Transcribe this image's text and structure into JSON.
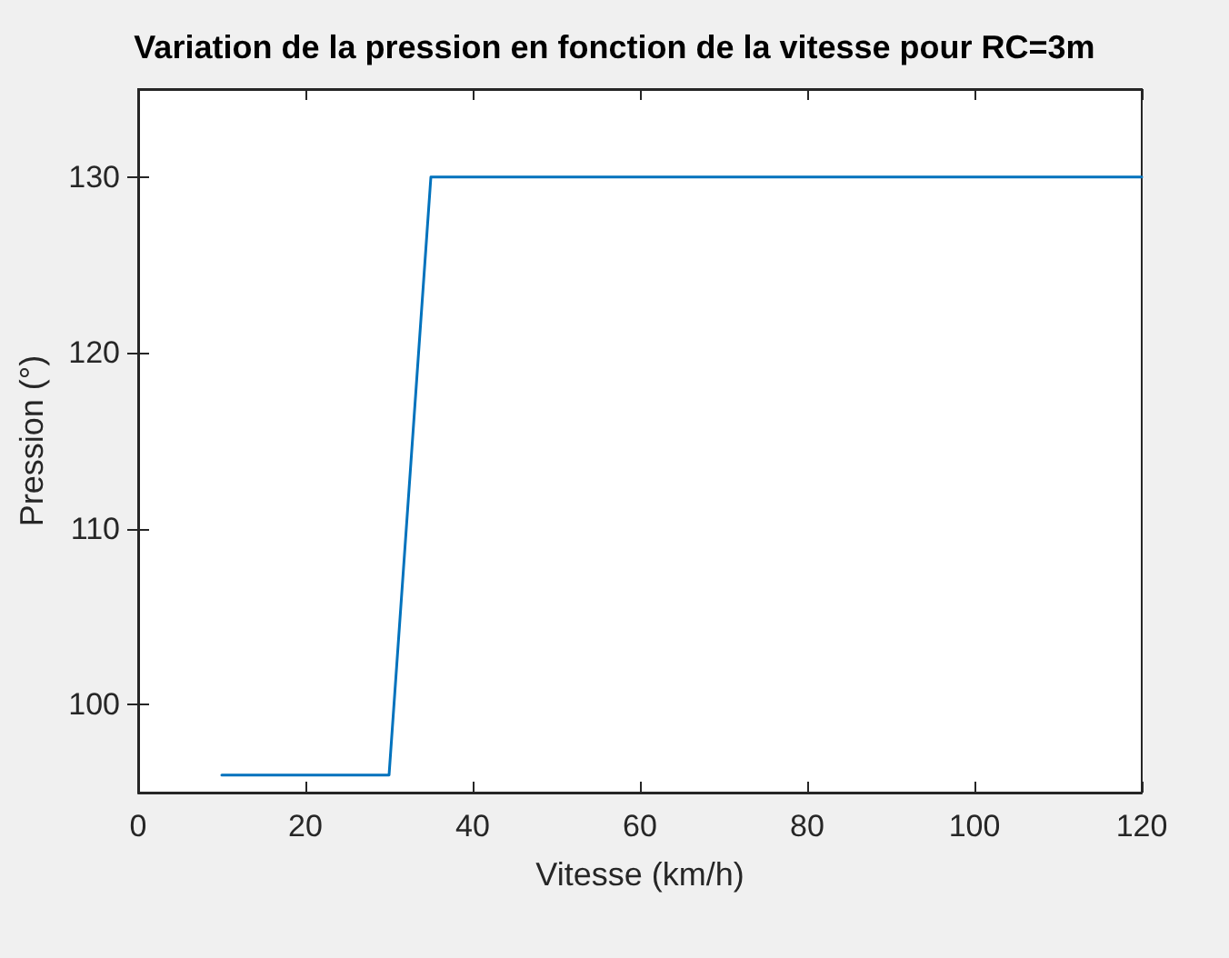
{
  "chart_data": {
    "type": "line",
    "title": "Variation de la pression en fonction de la vitesse pour RC=3m",
    "xlabel": "Vitesse (km/h)",
    "ylabel": "Pression (°)",
    "x": [
      10,
      30,
      35,
      120
    ],
    "series": [
      {
        "color": "#0072bd",
        "values": [
          96,
          96,
          130,
          130
        ]
      }
    ],
    "xlim": [
      0,
      120
    ],
    "xticks": [
      0,
      20,
      40,
      60,
      80,
      100,
      120
    ],
    "ylim": [
      95,
      135
    ],
    "yticks": [
      100,
      110,
      120,
      130
    ],
    "grid": false,
    "marker": "none",
    "line_style": "solid"
  }
}
